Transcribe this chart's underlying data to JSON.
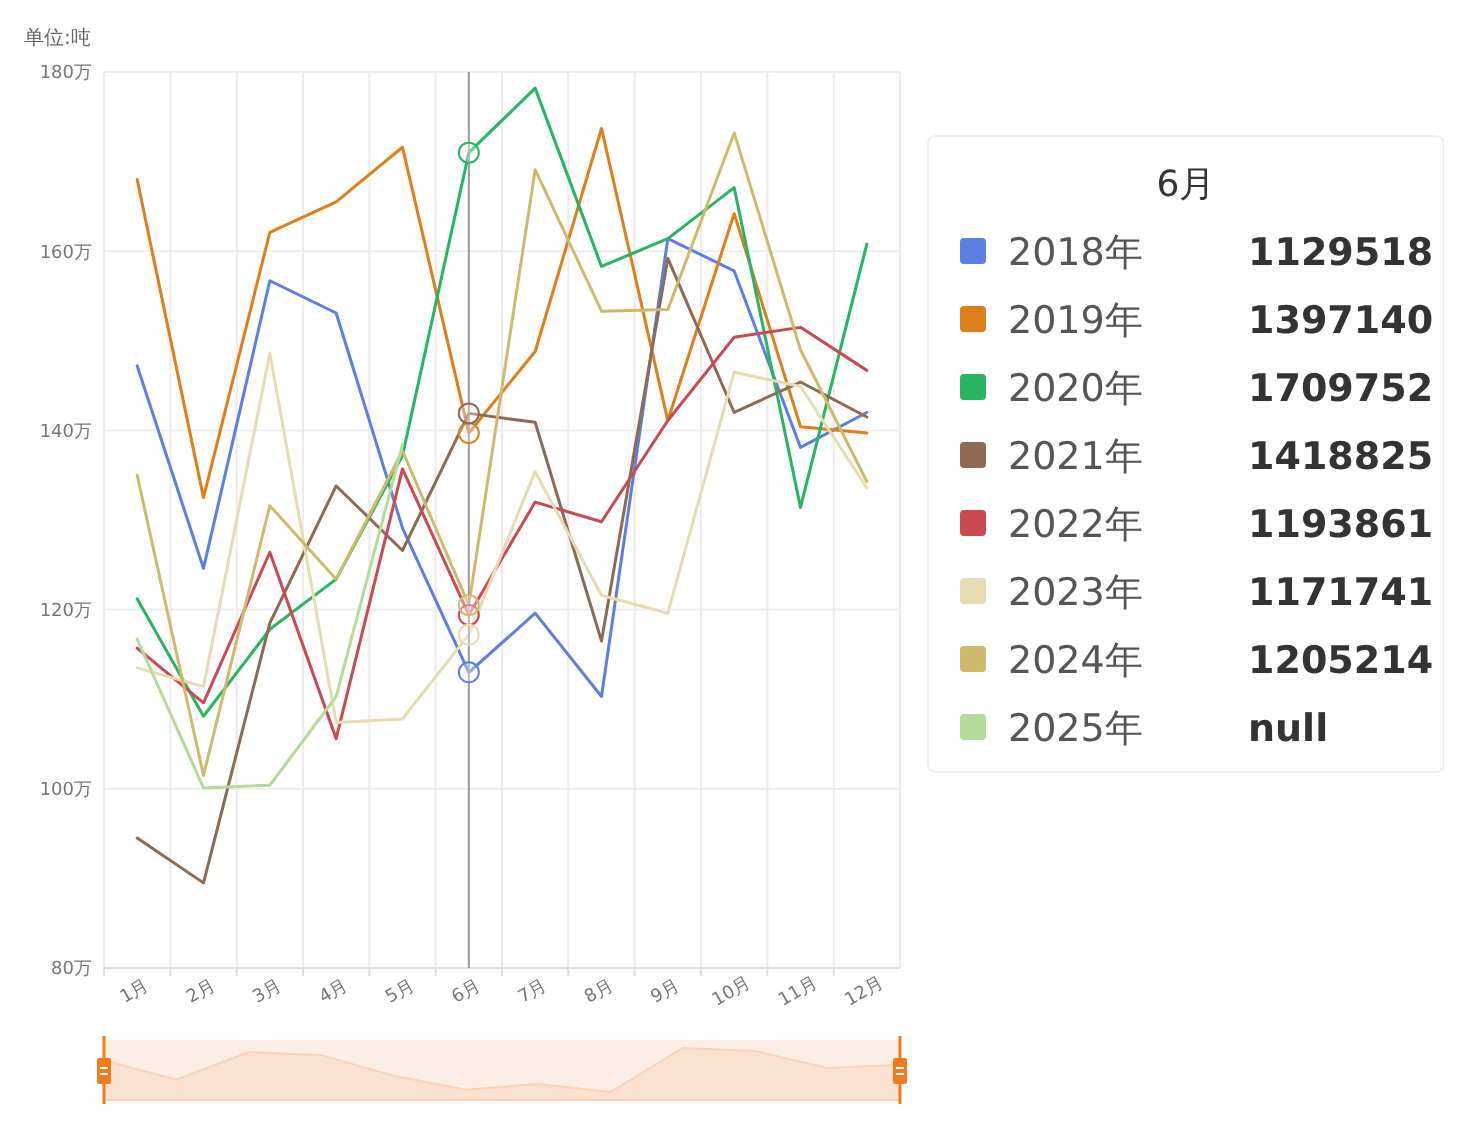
{
  "chart_data": {
    "type": "line",
    "ylabel": "单位:吨",
    "categories": [
      "1月",
      "2月",
      "3月",
      "4月",
      "5月",
      "6月",
      "7月",
      "8月",
      "9月",
      "10月",
      "11月",
      "12月"
    ],
    "ylim": [
      80,
      180
    ],
    "yticks": [
      {
        "value": 80,
        "label": "80万"
      },
      {
        "value": 100,
        "label": "100万"
      },
      {
        "value": 120,
        "label": "120万"
      },
      {
        "value": 140,
        "label": "140万"
      },
      {
        "value": 160,
        "label": "160万"
      },
      {
        "value": 180,
        "label": "180万"
      }
    ],
    "grid": true,
    "legend": "right",
    "annotations": [
      "6月",
      "1129518",
      "1397140",
      "1709752",
      "1418825",
      "1193861",
      "1171741",
      "1205214",
      "null"
    ],
    "ref_lines": [
      {
        "axis": "x",
        "value": "6月",
        "color": "#999999"
      }
    ],
    "series": [
      {
        "name": "2018年",
        "color": "#5b7fe3",
        "values": [
          147.2,
          124.6,
          156.7,
          153.1,
          129.1,
          113,
          119.6,
          110.3,
          161.4,
          157.8,
          138.1,
          142
        ]
      },
      {
        "name": "2019年",
        "color": "#dd7f1b",
        "values": [
          168,
          132.5,
          162.1,
          165.5,
          171.6,
          139.7,
          148.8,
          173.7,
          141.1,
          164.2,
          140.4,
          139.7
        ]
      },
      {
        "name": "2020年",
        "color": "#27b562",
        "values": [
          121.2,
          108.1,
          117.8,
          123.4,
          137.2,
          171,
          178.2,
          158.3,
          161.4,
          167.1,
          131.4,
          160.8
        ]
      },
      {
        "name": "2021年",
        "color": "#8e6a55",
        "values": [
          94.5,
          89.5,
          118.5,
          133.8,
          126.6,
          141.9,
          140.9,
          116.5,
          159.2,
          142,
          145.4,
          141.5
        ]
      },
      {
        "name": "2022年",
        "color": "#c94a53",
        "values": [
          115.7,
          109.6,
          126.4,
          105.6,
          135.7,
          119.4,
          132,
          129.8,
          141.1,
          150.4,
          151.5,
          146.7
        ]
      },
      {
        "name": "2023年",
        "color": "#e8dbb2",
        "values": [
          113.5,
          111.4,
          148.6,
          107.4,
          107.8,
          117.2,
          135.4,
          121.6,
          119.6,
          146.5,
          144.9,
          133.6
        ]
      },
      {
        "name": "2024年",
        "color": "#cfb96a",
        "values": [
          135,
          101.5,
          131.6,
          123.4,
          137.7,
          120.5,
          169.1,
          153.3,
          153.5,
          173.2,
          149,
          134.3
        ]
      },
      {
        "name": "2025年",
        "color": "#b5db98",
        "values": [
          116.7,
          100.1,
          100.4,
          110.3,
          138.4,
          null,
          null,
          null,
          null,
          null,
          null,
          null
        ]
      }
    ]
  }
}
